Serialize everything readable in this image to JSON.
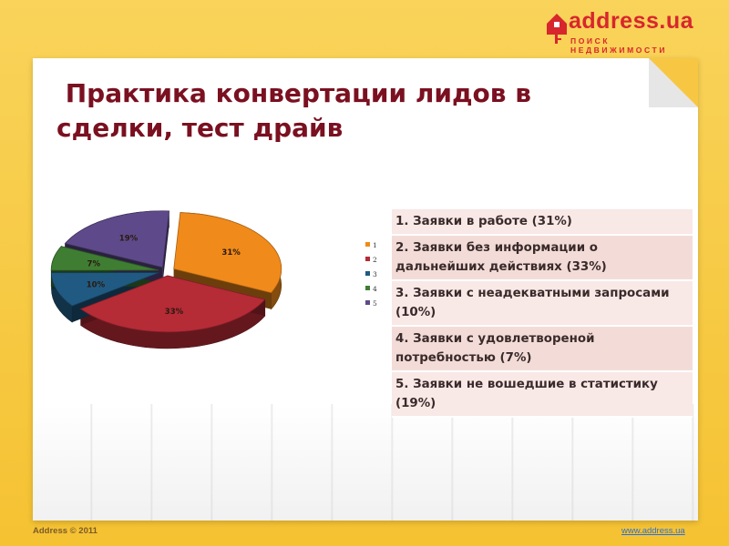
{
  "logo": {
    "text": "address.ua",
    "subtitle": "ПОИСК НЕДВИЖИМОСТИ",
    "color": "#d8262d"
  },
  "title": " Практика конвертации лидов в\nсделки, тест драйв",
  "chart_data": {
    "type": "pie",
    "categories": [
      "1",
      "2",
      "3",
      "4",
      "5"
    ],
    "values": [
      31,
      33,
      10,
      7,
      19
    ],
    "data_labels": [
      "31%",
      "33%",
      "10%",
      "7%",
      "19%"
    ],
    "legend": [
      "1",
      "2",
      "3",
      "4",
      "5"
    ],
    "legend_position": "right",
    "colors": [
      "#f08a1a",
      "#b52b36",
      "#205a82",
      "#3f7d33",
      "#5e4a8a"
    ],
    "exploded": true,
    "style": "3d"
  },
  "legend_rows": [
    "1. Заявки в работе (31%)",
    "2. Заявки без информации о дальнейших действиях (33%)",
    "3. Заявки с неадекватными запросами (10%)",
    "4. Заявки с удовлетвореной потребностью (7%)",
    "5. Заявки не вошедшие в статистику (19%)"
  ],
  "footer": {
    "left": "Address © 2011",
    "right": "www.address.ua"
  }
}
